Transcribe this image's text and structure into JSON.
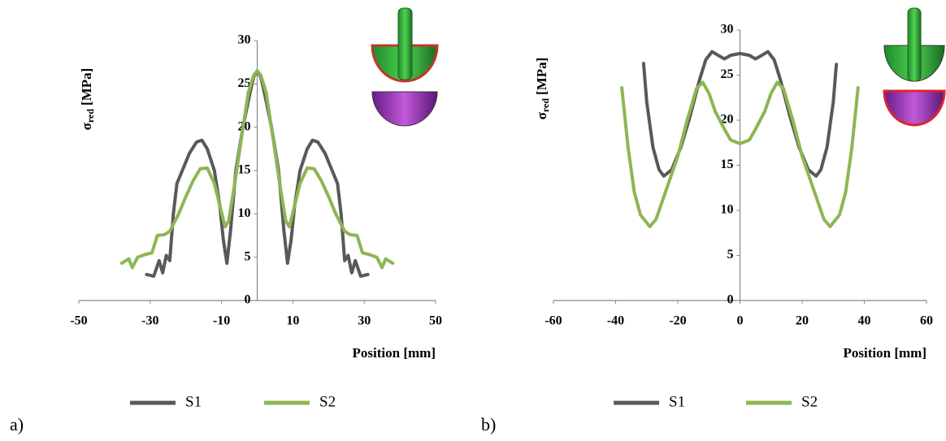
{
  "chart_data": [
    {
      "type": "line",
      "panel_label": "a)",
      "ylabel": {
        "symbol": "σ",
        "subscript": "red",
        "unit": "[MPa]"
      },
      "xlabel": "Position [mm]",
      "xlim": [
        -50,
        50
      ],
      "xticks": [
        -50,
        -30,
        -10,
        10,
        30,
        50
      ],
      "ylim": [
        0,
        30
      ],
      "yticks": [
        0,
        5,
        10,
        15,
        20,
        25,
        30
      ],
      "series": [
        {
          "name": "S1",
          "color": "#595959",
          "x": [
            -31,
            -29,
            -27.5,
            -26.5,
            -25.5,
            -24.5,
            -23.5,
            -22.5,
            -21,
            -19,
            -17,
            -15.5,
            -14,
            -12,
            -10.5,
            -9.5,
            -8.5,
            -7.5,
            -6,
            -4,
            -2,
            -1,
            0,
            1,
            2,
            4,
            6,
            7.5,
            8.5,
            9.5,
            10.5,
            12,
            14,
            15.5,
            17,
            19,
            21,
            22.5,
            23.5,
            24.5,
            25.5,
            26.5,
            27.5,
            29,
            31
          ],
          "values": [
            3,
            2.8,
            4.6,
            3.2,
            5.2,
            4.6,
            10,
            13.5,
            15,
            17,
            18.3,
            18.5,
            17.5,
            15,
            11,
            7,
            4.3,
            8,
            15,
            20,
            24,
            25.8,
            26.5,
            25.8,
            24,
            20,
            15,
            8,
            4.3,
            7,
            11,
            15,
            17.5,
            18.5,
            18.3,
            17,
            15,
            13.5,
            10,
            4.6,
            5.2,
            3.2,
            4.6,
            2.8,
            3
          ]
        },
        {
          "name": "S2",
          "color": "#8db654",
          "x": [
            -38,
            -36,
            -35,
            -33.5,
            -31.5,
            -29.5,
            -28,
            -26,
            -24.5,
            -22,
            -20,
            -18,
            -16,
            -14,
            -12,
            -10.5,
            -9,
            -8,
            -6.5,
            -4.5,
            -2.5,
            -1,
            0,
            1,
            2.5,
            4.5,
            6.5,
            8,
            9,
            10.5,
            12,
            14,
            16,
            18,
            20,
            22,
            24.5,
            26,
            28,
            29.5,
            31.5,
            33.5,
            35,
            36,
            38
          ],
          "values": [
            4.3,
            4.8,
            3.8,
            5,
            5.3,
            5.5,
            7.5,
            7.6,
            8,
            10,
            12,
            13.8,
            15.2,
            15.3,
            13.5,
            11,
            8.5,
            9.2,
            13,
            18.5,
            24,
            26,
            26.5,
            26,
            24,
            18.5,
            13,
            9.2,
            8.5,
            11,
            13.5,
            15.3,
            15.2,
            13.8,
            12,
            10,
            8,
            7.6,
            7.5,
            5.5,
            5.3,
            5,
            3.8,
            4.8,
            4.3
          ]
        }
      ]
    },
    {
      "type": "line",
      "panel_label": "b)",
      "ylabel": {
        "symbol": "σ",
        "subscript": "red",
        "unit": "[MPa]"
      },
      "xlabel": "Position [mm]",
      "xlim": [
        -60,
        60
      ],
      "xticks": [
        -60,
        -40,
        -20,
        0,
        20,
        40,
        60
      ],
      "ylim": [
        0,
        30
      ],
      "yticks": [
        0,
        5,
        10,
        15,
        20,
        25,
        30
      ],
      "series": [
        {
          "name": "S1",
          "color": "#595959",
          "x": [
            -31,
            -30,
            -28,
            -26,
            -24.5,
            -22,
            -19,
            -16,
            -13,
            -11,
            -9,
            -7,
            -5,
            -3,
            0,
            3,
            5,
            7,
            9,
            11,
            13,
            16,
            19,
            22,
            24.5,
            26,
            28,
            30,
            31
          ],
          "values": [
            26.3,
            22,
            17,
            14.5,
            13.8,
            14.5,
            17,
            20.5,
            24.5,
            26.7,
            27.6,
            27.2,
            26.8,
            27.2,
            27.4,
            27.2,
            26.8,
            27.2,
            27.6,
            26.7,
            24.5,
            20.5,
            17,
            14.5,
            13.8,
            14.5,
            17,
            22,
            26.2
          ]
        },
        {
          "name": "S2",
          "color": "#8db654",
          "x": [
            -38,
            -36,
            -34,
            -32,
            -29,
            -27,
            -24,
            -20,
            -17,
            -14,
            -12,
            -10,
            -8,
            -5,
            -3,
            0,
            3,
            5,
            8,
            10,
            12,
            14,
            17,
            20,
            24,
            27,
            29,
            32,
            34,
            36,
            38
          ],
          "values": [
            23.6,
            17,
            12,
            9.5,
            8.2,
            9,
            12,
            16,
            20,
            23.5,
            24.2,
            23,
            21,
            19,
            17.8,
            17.4,
            17.8,
            19,
            21,
            23,
            24.2,
            23.5,
            20,
            16,
            12,
            9,
            8.2,
            9.5,
            12,
            17,
            23.6
          ]
        }
      ]
    }
  ]
}
